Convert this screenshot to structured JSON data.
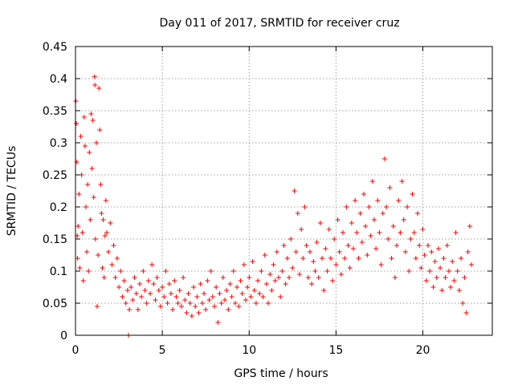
{
  "chart_data": {
    "type": "scatter",
    "title": "Day 011 of 2017, SRMTID for receiver cruz",
    "xlabel": "GPS time / hours",
    "ylabel": "SRMTID / TECUs",
    "xlim": [
      0,
      24
    ],
    "ylim": [
      0,
      0.45
    ],
    "xticks": [
      0,
      5,
      10,
      15,
      20
    ],
    "xtick_labels": [
      "0",
      "5",
      "10",
      "15",
      "20"
    ],
    "yticks": [
      0,
      0.05,
      0.1,
      0.15,
      0.2,
      0.25,
      0.3,
      0.35,
      0.4,
      0.45
    ],
    "ytick_labels": [
      "0",
      "0.05",
      "0.1",
      "0.15",
      "0.2",
      "0.25",
      "0.3",
      "0.35",
      "0.4",
      "0.45"
    ],
    "grid": true,
    "marker": "+",
    "color": "#ff0000",
    "series": [
      {
        "name": "SRMTID",
        "points": [
          [
            0.02,
            0.365
          ],
          [
            0.05,
            0.33
          ],
          [
            0.08,
            0.27
          ],
          [
            0.1,
            0.155
          ],
          [
            0.12,
            0.12
          ],
          [
            0.15,
            0.17
          ],
          [
            0.2,
            0.22
          ],
          [
            0.25,
            0.105
          ],
          [
            0.3,
            0.31
          ],
          [
            0.35,
            0.25
          ],
          [
            0.4,
            0.16
          ],
          [
            0.45,
            0.085
          ],
          [
            0.5,
            0.34
          ],
          [
            0.55,
            0.295
          ],
          [
            0.6,
            0.2
          ],
          [
            0.65,
            0.13
          ],
          [
            0.7,
            0.235
          ],
          [
            0.75,
            0.1
          ],
          [
            0.8,
            0.285
          ],
          [
            0.85,
            0.18
          ],
          [
            0.9,
            0.345
          ],
          [
            0.95,
            0.26
          ],
          [
            1.0,
            0.335
          ],
          [
            1.05,
            0.215
          ],
          [
            1.1,
            0.403
          ],
          [
            1.12,
            0.39
          ],
          [
            1.15,
            0.15
          ],
          [
            1.2,
            0.3
          ],
          [
            1.25,
            0.045
          ],
          [
            1.3,
            0.125
          ],
          [
            1.35,
            0.385
          ],
          [
            1.4,
            0.32
          ],
          [
            1.45,
            0.235
          ],
          [
            1.5,
            0.19
          ],
          [
            1.55,
            0.105
          ],
          [
            1.6,
            0.18
          ],
          [
            1.65,
            0.09
          ],
          [
            1.7,
            0.155
          ],
          [
            1.75,
            0.21
          ],
          [
            1.8,
            0.16
          ],
          [
            1.9,
            0.13
          ],
          [
            2.0,
            0.175
          ],
          [
            2.1,
            0.11
          ],
          [
            2.2,
            0.14
          ],
          [
            2.3,
            0.09
          ],
          [
            2.4,
            0.12
          ],
          [
            2.5,
            0.075
          ],
          [
            2.6,
            0.1
          ],
          [
            2.7,
            0.06
          ],
          [
            2.8,
            0.085
          ],
          [
            2.9,
            0.05
          ],
          [
            3.0,
            0.07
          ],
          [
            3.05,
            0.0
          ],
          [
            3.1,
            0.04
          ],
          [
            3.2,
            0.075
          ],
          [
            3.3,
            0.055
          ],
          [
            3.4,
            0.09
          ],
          [
            3.5,
            0.065
          ],
          [
            3.6,
            0.04
          ],
          [
            3.7,
            0.08
          ],
          [
            3.8,
            0.06
          ],
          [
            3.9,
            0.1
          ],
          [
            4.0,
            0.07
          ],
          [
            4.1,
            0.05
          ],
          [
            4.2,
            0.085
          ],
          [
            4.3,
            0.065
          ],
          [
            4.4,
            0.11
          ],
          [
            4.5,
            0.08
          ],
          [
            4.6,
            0.055
          ],
          [
            4.7,
            0.09
          ],
          [
            4.8,
            0.07
          ],
          [
            4.9,
            0.045
          ],
          [
            5.0,
            0.075
          ],
          [
            5.1,
            0.06
          ],
          [
            5.2,
            0.1
          ],
          [
            5.3,
            0.05
          ],
          [
            5.4,
            0.08
          ],
          [
            5.5,
            0.065
          ],
          [
            5.6,
            0.04
          ],
          [
            5.7,
            0.085
          ],
          [
            5.8,
            0.06
          ],
          [
            5.9,
            0.05
          ],
          [
            6.0,
            0.07
          ],
          [
            6.1,
            0.045
          ],
          [
            6.2,
            0.09
          ],
          [
            6.3,
            0.055
          ],
          [
            6.4,
            0.035
          ],
          [
            6.5,
            0.065
          ],
          [
            6.6,
            0.05
          ],
          [
            6.7,
            0.03
          ],
          [
            6.8,
            0.075
          ],
          [
            6.9,
            0.045
          ],
          [
            7.0,
            0.06
          ],
          [
            7.1,
            0.035
          ],
          [
            7.2,
            0.08
          ],
          [
            7.3,
            0.05
          ],
          [
            7.4,
            0.065
          ],
          [
            7.5,
            0.04
          ],
          [
            7.6,
            0.085
          ],
          [
            7.7,
            0.055
          ],
          [
            7.8,
            0.1
          ],
          [
            7.9,
            0.06
          ],
          [
            8.0,
            0.045
          ],
          [
            8.1,
            0.075
          ],
          [
            8.2,
            0.02
          ],
          [
            8.3,
            0.065
          ],
          [
            8.4,
            0.05
          ],
          [
            8.5,
            0.09
          ],
          [
            8.6,
            0.055
          ],
          [
            8.7,
            0.07
          ],
          [
            8.8,
            0.04
          ],
          [
            8.9,
            0.08
          ],
          [
            9.0,
            0.06
          ],
          [
            9.1,
            0.1
          ],
          [
            9.2,
            0.05
          ],
          [
            9.3,
            0.075
          ],
          [
            9.4,
            0.045
          ],
          [
            9.5,
            0.085
          ],
          [
            9.6,
            0.065
          ],
          [
            9.7,
            0.11
          ],
          [
            9.8,
            0.055
          ],
          [
            9.9,
            0.075
          ],
          [
            10.0,
            0.09
          ],
          [
            10.1,
            0.06
          ],
          [
            10.2,
            0.115
          ],
          [
            10.3,
            0.07
          ],
          [
            10.4,
            0.05
          ],
          [
            10.5,
            0.085
          ],
          [
            10.6,
            0.065
          ],
          [
            10.7,
            0.1
          ],
          [
            10.8,
            0.06
          ],
          [
            10.9,
            0.125
          ],
          [
            11.0,
            0.08
          ],
          [
            11.1,
            0.05
          ],
          [
            11.2,
            0.095
          ],
          [
            11.3,
            0.07
          ],
          [
            11.4,
            0.11
          ],
          [
            11.5,
            0.085
          ],
          [
            11.6,
            0.13
          ],
          [
            11.7,
            0.09
          ],
          [
            11.8,
            0.06
          ],
          [
            11.9,
            0.1
          ],
          [
            12.0,
            0.14
          ],
          [
            12.1,
            0.08
          ],
          [
            12.2,
            0.12
          ],
          [
            12.3,
            0.09
          ],
          [
            12.4,
            0.15
          ],
          [
            12.5,
            0.105
          ],
          [
            12.6,
            0.225
          ],
          [
            12.7,
            0.13
          ],
          [
            12.8,
            0.19
          ],
          [
            12.9,
            0.095
          ],
          [
            13.0,
            0.165
          ],
          [
            13.1,
            0.12
          ],
          [
            13.2,
            0.2
          ],
          [
            13.3,
            0.14
          ],
          [
            13.4,
            0.09
          ],
          [
            13.5,
            0.13
          ],
          [
            13.6,
            0.08
          ],
          [
            13.7,
            0.115
          ],
          [
            13.8,
            0.1
          ],
          [
            13.9,
            0.145
          ],
          [
            14.0,
            0.09
          ],
          [
            14.1,
            0.175
          ],
          [
            14.2,
            0.12
          ],
          [
            14.3,
            0.07
          ],
          [
            14.4,
            0.135
          ],
          [
            14.5,
            0.1
          ],
          [
            14.6,
            0.165
          ],
          [
            14.7,
            0.12
          ],
          [
            14.8,
            0.085
          ],
          [
            14.9,
            0.15
          ],
          [
            15.0,
            0.11
          ],
          [
            15.1,
            0.18
          ],
          [
            15.2,
            0.13
          ],
          [
            15.3,
            0.095
          ],
          [
            15.4,
            0.16
          ],
          [
            15.5,
            0.12
          ],
          [
            15.6,
            0.2
          ],
          [
            15.7,
            0.14
          ],
          [
            15.8,
            0.105
          ],
          [
            15.9,
            0.175
          ],
          [
            16.0,
            0.135
          ],
          [
            16.1,
            0.21
          ],
          [
            16.2,
            0.16
          ],
          [
            16.3,
            0.12
          ],
          [
            16.4,
            0.19
          ],
          [
            16.5,
            0.145
          ],
          [
            16.6,
            0.22
          ],
          [
            16.7,
            0.17
          ],
          [
            16.8,
            0.125
          ],
          [
            16.9,
            0.2
          ],
          [
            17.0,
            0.155
          ],
          [
            17.1,
            0.24
          ],
          [
            17.2,
            0.18
          ],
          [
            17.3,
            0.135
          ],
          [
            17.4,
            0.21
          ],
          [
            17.5,
            0.16
          ],
          [
            17.6,
            0.11
          ],
          [
            17.7,
            0.19
          ],
          [
            17.8,
            0.275
          ],
          [
            17.9,
            0.2
          ],
          [
            18.0,
            0.15
          ],
          [
            18.1,
            0.23
          ],
          [
            18.2,
            0.12
          ],
          [
            18.3,
            0.17
          ],
          [
            18.4,
            0.09
          ],
          [
            18.5,
            0.14
          ],
          [
            18.6,
            0.21
          ],
          [
            18.7,
            0.16
          ],
          [
            18.8,
            0.24
          ],
          [
            18.9,
            0.18
          ],
          [
            19.0,
            0.13
          ],
          [
            19.1,
            0.2
          ],
          [
            19.2,
            0.1
          ],
          [
            19.3,
            0.15
          ],
          [
            19.4,
            0.22
          ],
          [
            19.5,
            0.16
          ],
          [
            19.6,
            0.12
          ],
          [
            19.7,
            0.19
          ],
          [
            19.8,
            0.14
          ],
          [
            19.9,
            0.105
          ],
          [
            20.0,
            0.165
          ],
          [
            20.1,
            0.125
          ],
          [
            20.2,
            0.085
          ],
          [
            20.3,
            0.14
          ],
          [
            20.4,
            0.1
          ],
          [
            20.5,
            0.13
          ],
          [
            20.6,
            0.075
          ],
          [
            20.7,
            0.115
          ],
          [
            20.8,
            0.09
          ],
          [
            20.9,
            0.135
          ],
          [
            21.0,
            0.105
          ],
          [
            21.1,
            0.07
          ],
          [
            21.2,
            0.12
          ],
          [
            21.3,
            0.09
          ],
          [
            21.4,
            0.14
          ],
          [
            21.5,
            0.1
          ],
          [
            21.6,
            0.075
          ],
          [
            21.7,
            0.115
          ],
          [
            21.8,
            0.085
          ],
          [
            21.9,
            0.16
          ],
          [
            22.0,
            0.1
          ],
          [
            22.1,
            0.07
          ],
          [
            22.2,
            0.12
          ],
          [
            22.3,
            0.05
          ],
          [
            22.4,
            0.09
          ],
          [
            22.5,
            0.035
          ],
          [
            22.6,
            0.13
          ],
          [
            22.7,
            0.17
          ],
          [
            22.8,
            0.11
          ]
        ]
      }
    ]
  }
}
